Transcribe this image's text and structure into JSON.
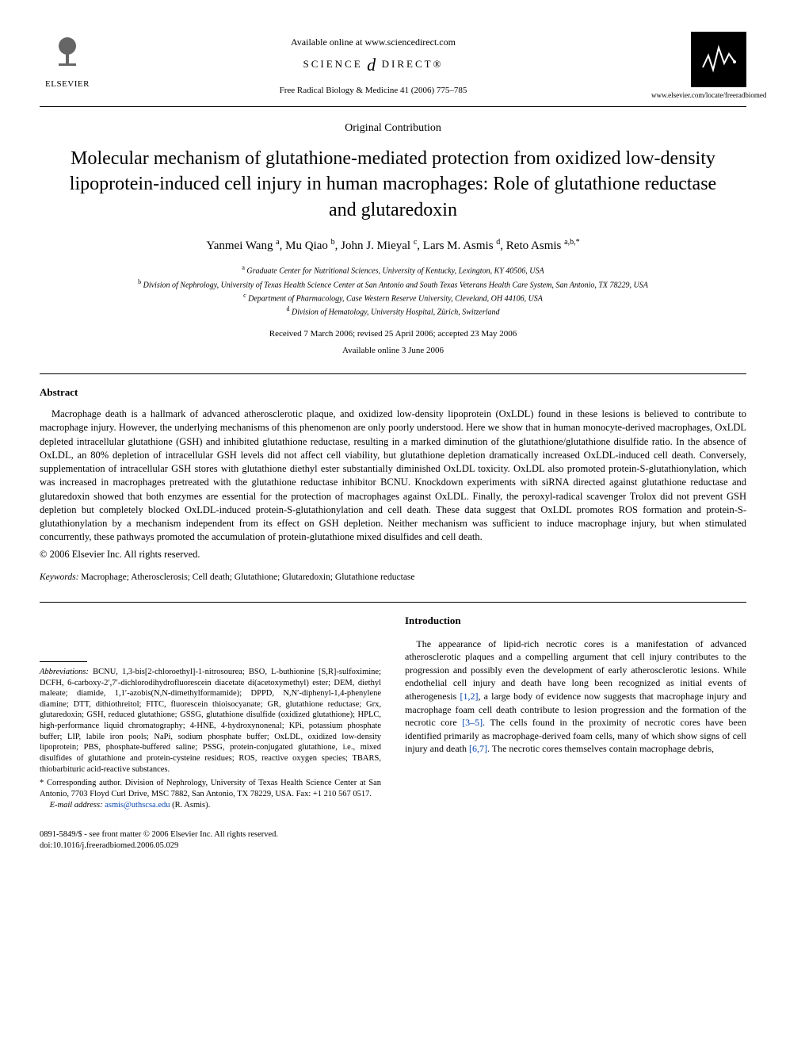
{
  "header": {
    "publisher_name": "ELSEVIER",
    "available_text": "Available online at www.sciencedirect.com",
    "science_direct": "SCIENCE DIRECT®",
    "journal_ref": "Free Radical Biology & Medicine 41 (2006) 775–785",
    "journal_url": "www.elsevier.com/locate/freeradbiomed"
  },
  "article_type": "Original Contribution",
  "title": "Molecular mechanism of glutathione-mediated protection from oxidized low-density lipoprotein-induced cell injury in human macrophages: Role of glutathione reductase and glutaredoxin",
  "authors_html": "Yanmei Wang <sup>a</sup>, Mu Qiao <sup>b</sup>, John J. Mieyal <sup>c</sup>, Lars M. Asmis <sup>d</sup>, Reto Asmis <sup>a,b,*</sup>",
  "affiliations": [
    {
      "sup": "a",
      "text": "Graduate Center for Nutritional Sciences, University of Kentucky, Lexington, KY 40506, USA"
    },
    {
      "sup": "b",
      "text": "Division of Nephrology, University of Texas Health Science Center at San Antonio and South Texas Veterans Health Care System, San Antonio, TX 78229, USA"
    },
    {
      "sup": "c",
      "text": "Department of Pharmacology, Case Western Reserve University, Cleveland, OH 44106, USA"
    },
    {
      "sup": "d",
      "text": "Division of Hematology, University Hospital, Zürich, Switzerland"
    }
  ],
  "dates": {
    "received": "Received 7 March 2006; revised 25 April 2006; accepted 23 May 2006",
    "online": "Available online 3 June 2006"
  },
  "abstract": {
    "heading": "Abstract",
    "text": "Macrophage death is a hallmark of advanced atherosclerotic plaque, and oxidized low-density lipoprotein (OxLDL) found in these lesions is believed to contribute to macrophage injury. However, the underlying mechanisms of this phenomenon are only poorly understood. Here we show that in human monocyte-derived macrophages, OxLDL depleted intracellular glutathione (GSH) and inhibited glutathione reductase, resulting in a marked diminution of the glutathione/glutathione disulfide ratio. In the absence of OxLDL, an 80% depletion of intracellular GSH levels did not affect cell viability, but glutathione depletion dramatically increased OxLDL-induced cell death. Conversely, supplementation of intracellular GSH stores with glutathione diethyl ester substantially diminished OxLDL toxicity. OxLDL also promoted protein-S-glutathionylation, which was increased in macrophages pretreated with the glutathione reductase inhibitor BCNU. Knockdown experiments with siRNA directed against glutathione reductase and glutaredoxin showed that both enzymes are essential for the protection of macrophages against OxLDL. Finally, the peroxyl-radical scavenger Trolox did not prevent GSH depletion but completely blocked OxLDL-induced protein-S-glutathionylation and cell death. These data suggest that OxLDL promotes ROS formation and protein-S-glutathionylation by a mechanism independent from its effect on GSH depletion. Neither mechanism was sufficient to induce macrophage injury, but when stimulated concurrently, these pathways promoted the accumulation of protein-glutathione mixed disulfides and cell death.",
    "copyright": "© 2006 Elsevier Inc. All rights reserved."
  },
  "keywords": {
    "label": "Keywords:",
    "text": "Macrophage; Atherosclerosis; Cell death; Glutathione; Glutaredoxin; Glutathione reductase"
  },
  "abbreviations": {
    "label": "Abbreviations:",
    "text": "BCNU, 1,3-bis[2-chloroethyl]-1-nitrosourea; BSO, L-buthionine [S,R]-sulfoximine; DCFH, 6-carboxy-2′,7′-dichlorodihydrofluorescein diacetate di(acetoxymethyl) ester; DEM, diethyl maleate; diamide, 1,1′-azobis(N,N-dimethylformamide); DPPD, N,N′-diphenyl-1,4-phenylene diamine; DTT, dithiothreitol; FITC, fluorescein thioisocyanate; GR, glutathione reductase; Grx, glutaredoxin; GSH, reduced glutathione; GSSG, glutathione disulfide (oxidized glutathione); HPLC, high-performance liquid chromatography; 4-HNE, 4-hydroxynonenal; KPi, potassium phosphate buffer; LIP, labile iron pools; NaPi, sodium phosphate buffer; OxLDL, oxidized low-density lipoprotein; PBS, phosphate-buffered saline; PSSG, protein-conjugated glutathione, i.e., mixed disulfides of glutathione and protein-cysteine residues; ROS, reactive oxygen species; TBARS, thiobarbituric acid-reactive substances."
  },
  "corresponding": {
    "text": "* Corresponding author. Division of Nephrology, University of Texas Health Science Center at San Antonio, 7703 Floyd Curl Drive, MSC 7882, San Antonio, TX 78229, USA. Fax: +1 210 567 0517.",
    "email_label": "E-mail address:",
    "email": "asmis@uthscsa.edu",
    "email_name": "(R. Asmis)."
  },
  "introduction": {
    "heading": "Introduction",
    "text_pre": "The appearance of lipid-rich necrotic cores is a manifestation of advanced atherosclerotic plaques and a compelling argument that cell injury contributes to the progression and possibly even the development of early atherosclerotic lesions. While endothelial cell injury and death have long been recognized as initial events of atherogenesis ",
    "ref1": "[1,2]",
    "text_mid1": ", a large body of evidence now suggests that macrophage injury and macrophage foam cell death contribute to lesion progression and the formation of the necrotic core ",
    "ref2": "[3–5]",
    "text_mid2": ". The cells found in the proximity of necrotic cores have been identified primarily as macrophage-derived foam cells, many of which show signs of cell injury and death ",
    "ref3": "[6,7]",
    "text_post": ". The necrotic cores themselves contain macrophage debris,"
  },
  "footer": {
    "issn": "0891-5849/$ - see front matter © 2006 Elsevier Inc. All rights reserved.",
    "doi": "doi:10.1016/j.freeradbiomed.2006.05.029"
  },
  "colors": {
    "text": "#000000",
    "background": "#ffffff",
    "link": "#0645ad"
  }
}
